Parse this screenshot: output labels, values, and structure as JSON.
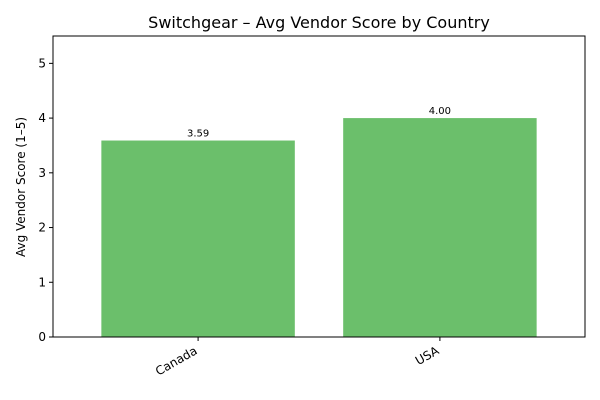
{
  "chart_data": {
    "type": "bar",
    "title": "Switchgear – Avg Vendor Score by Country",
    "xlabel": "",
    "ylabel": "Avg Vendor Score (1–5)",
    "categories": [
      "Canada",
      "USA"
    ],
    "values": [
      3.59,
      4.0
    ],
    "data_labels": [
      "3.59",
      "4.00"
    ],
    "ylim": [
      0,
      5.5
    ],
    "yticks": [
      0,
      1,
      2,
      3,
      4,
      5
    ],
    "bar_color": "#6bbf6b",
    "grid": false,
    "legend": "none"
  }
}
